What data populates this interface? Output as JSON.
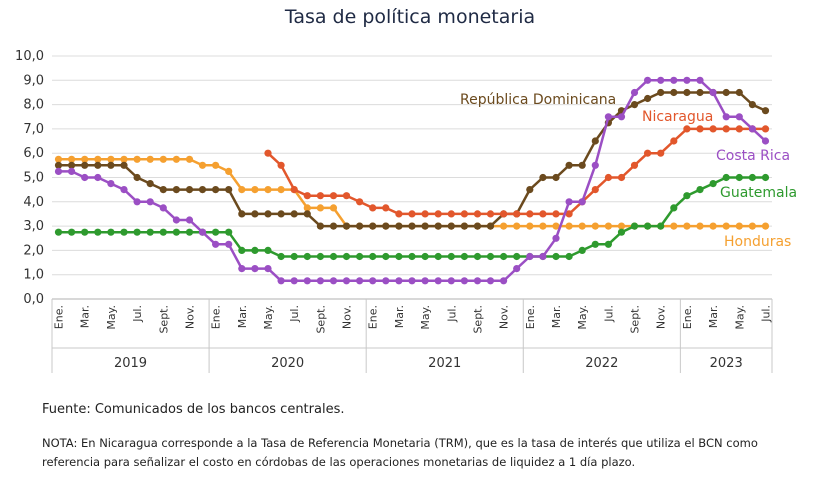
{
  "chart_data": {
    "type": "line",
    "title": "Tasa de política monetaria",
    "ylim": [
      0,
      10
    ],
    "yticks": [
      "0,0",
      "1,0",
      "2,0",
      "3,0",
      "4,0",
      "5,0",
      "6,0",
      "7,0",
      "8,0",
      "9,0",
      "10,0"
    ],
    "x": [
      "2019-01",
      "2019-02",
      "2019-03",
      "2019-04",
      "2019-05",
      "2019-06",
      "2019-07",
      "2019-08",
      "2019-09",
      "2019-10",
      "2019-11",
      "2019-12",
      "2020-01",
      "2020-02",
      "2020-03",
      "2020-04",
      "2020-05",
      "2020-06",
      "2020-07",
      "2020-08",
      "2020-09",
      "2020-10",
      "2020-11",
      "2020-12",
      "2021-01",
      "2021-02",
      "2021-03",
      "2021-04",
      "2021-05",
      "2021-06",
      "2021-07",
      "2021-08",
      "2021-09",
      "2021-10",
      "2021-11",
      "2021-12",
      "2022-01",
      "2022-02",
      "2022-03",
      "2022-04",
      "2022-05",
      "2022-06",
      "2022-07",
      "2022-08",
      "2022-09",
      "2022-10",
      "2022-11",
      "2022-12",
      "2023-01",
      "2023-02",
      "2023-03",
      "2023-04",
      "2023-05",
      "2023-06",
      "2023-07"
    ],
    "month_tick_labels": [
      "Ene.",
      "Mar.",
      "May.",
      "Jul.",
      "Sept.",
      "Nov."
    ],
    "year_labels": [
      "2019",
      "2020",
      "2021",
      "2022",
      "2023"
    ],
    "grid": true,
    "legend": "labels next to lines",
    "series": [
      {
        "name": "República Dominicana",
        "color": "#6b4a1e",
        "values": [
          5.5,
          5.5,
          5.5,
          5.5,
          5.5,
          5.5,
          5.0,
          4.75,
          4.5,
          4.5,
          4.5,
          4.5,
          4.5,
          4.5,
          3.5,
          3.5,
          3.5,
          3.5,
          3.5,
          3.5,
          3.0,
          3.0,
          3.0,
          3.0,
          3.0,
          3.0,
          3.0,
          3.0,
          3.0,
          3.0,
          3.0,
          3.0,
          3.0,
          3.0,
          3.5,
          3.5,
          4.5,
          5.0,
          5.0,
          5.5,
          5.5,
          6.5,
          7.25,
          7.75,
          8.0,
          8.25,
          8.5,
          8.5,
          8.5,
          8.5,
          8.5,
          8.5,
          8.5,
          8.0,
          7.75
        ]
      },
      {
        "name": "Nicaragua",
        "color": "#e2572c",
        "values": [
          null,
          null,
          null,
          null,
          null,
          null,
          null,
          null,
          null,
          null,
          null,
          null,
          null,
          null,
          null,
          null,
          6.0,
          5.5,
          4.5,
          4.25,
          4.25,
          4.25,
          4.25,
          4.0,
          3.75,
          3.75,
          3.5,
          3.5,
          3.5,
          3.5,
          3.5,
          3.5,
          3.5,
          3.5,
          3.5,
          3.5,
          3.5,
          3.5,
          3.5,
          3.5,
          4.0,
          4.5,
          5.0,
          5.0,
          5.5,
          6.0,
          6.0,
          6.5,
          7.0,
          7.0,
          7.0,
          7.0,
          7.0,
          7.0,
          7.0
        ]
      },
      {
        "name": "Costa Rica",
        "color": "#9b4fc4",
        "values": [
          5.25,
          5.25,
          5.0,
          5.0,
          4.75,
          4.5,
          4.0,
          4.0,
          3.75,
          3.25,
          3.25,
          2.75,
          2.25,
          2.25,
          1.25,
          1.25,
          1.25,
          0.75,
          0.75,
          0.75,
          0.75,
          0.75,
          0.75,
          0.75,
          0.75,
          0.75,
          0.75,
          0.75,
          0.75,
          0.75,
          0.75,
          0.75,
          0.75,
          0.75,
          0.75,
          1.25,
          1.75,
          1.75,
          2.5,
          4.0,
          4.0,
          5.5,
          7.5,
          7.5,
          8.5,
          9.0,
          9.0,
          9.0,
          9.0,
          9.0,
          8.5,
          7.5,
          7.5,
          7.0,
          6.5
        ]
      },
      {
        "name": "Guatemala",
        "color": "#2e9a2e",
        "values": [
          2.75,
          2.75,
          2.75,
          2.75,
          2.75,
          2.75,
          2.75,
          2.75,
          2.75,
          2.75,
          2.75,
          2.75,
          2.75,
          2.75,
          2.0,
          2.0,
          2.0,
          1.75,
          1.75,
          1.75,
          1.75,
          1.75,
          1.75,
          1.75,
          1.75,
          1.75,
          1.75,
          1.75,
          1.75,
          1.75,
          1.75,
          1.75,
          1.75,
          1.75,
          1.75,
          1.75,
          1.75,
          1.75,
          1.75,
          1.75,
          2.0,
          2.25,
          2.25,
          2.75,
          3.0,
          3.0,
          3.0,
          3.75,
          4.25,
          4.5,
          4.75,
          5.0,
          5.0,
          5.0,
          5.0
        ]
      },
      {
        "name": "Honduras",
        "color": "#f5a030",
        "values": [
          5.75,
          5.75,
          5.75,
          5.75,
          5.75,
          5.75,
          5.75,
          5.75,
          5.75,
          5.75,
          5.75,
          5.5,
          5.5,
          5.25,
          4.5,
          4.5,
          4.5,
          4.5,
          4.5,
          3.75,
          3.75,
          3.75,
          3.0,
          3.0,
          3.0,
          3.0,
          3.0,
          3.0,
          3.0,
          3.0,
          3.0,
          3.0,
          3.0,
          3.0,
          3.0,
          3.0,
          3.0,
          3.0,
          3.0,
          3.0,
          3.0,
          3.0,
          3.0,
          3.0,
          3.0,
          3.0,
          3.0,
          3.0,
          3.0,
          3.0,
          3.0,
          3.0,
          3.0,
          3.0,
          3.0
        ]
      }
    ]
  },
  "source": "Fuente: Comunicados de los bancos centrales.",
  "note": "NOTA: En Nicaragua corresponde a la Tasa de Referencia Monetaria (TRM), que es la tasa de interés que utiliza el BCN como referencia para señalizar el costo en córdobas de las operaciones monetarias de liquidez a 1 día plazo."
}
